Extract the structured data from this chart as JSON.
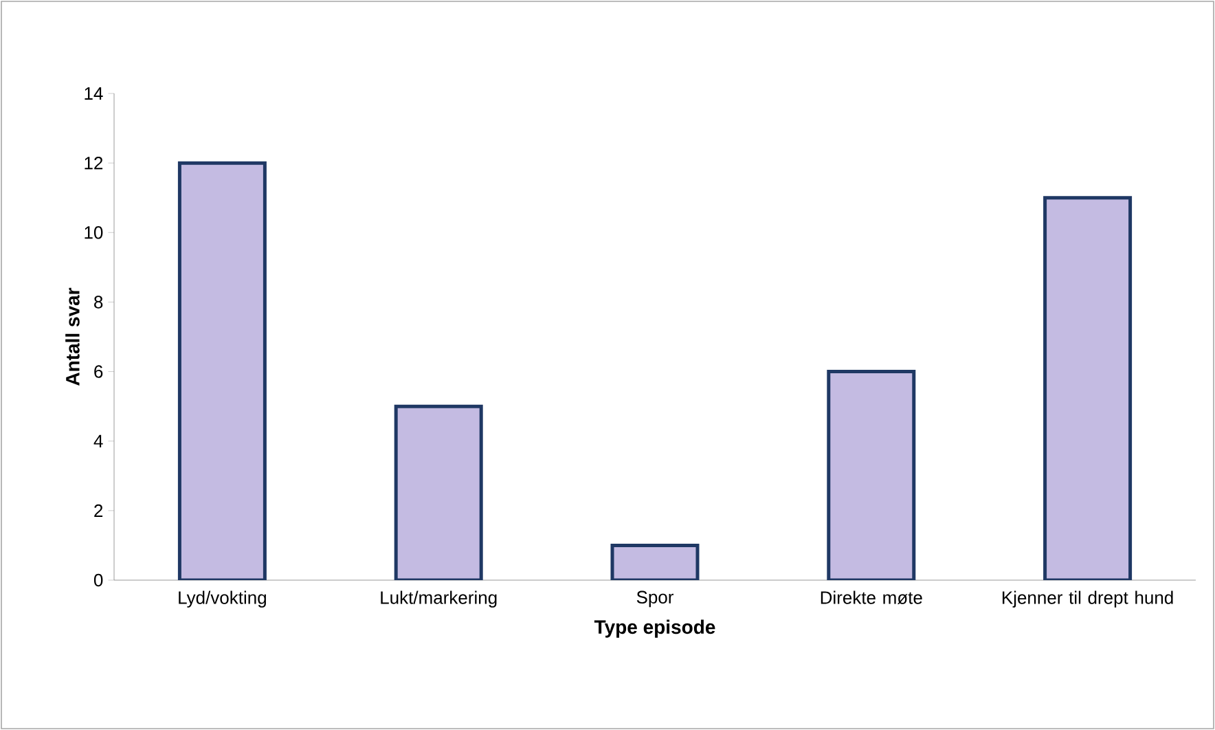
{
  "chart_data": {
    "type": "bar",
    "categories": [
      "Lyd/vokting",
      "Lukt/markering",
      "Spor",
      "Direkte møte",
      "Kjenner til drept hund"
    ],
    "values": [
      12,
      5,
      1,
      6,
      11
    ],
    "color": "#c4bbe2",
    "xlabel": "Type episode",
    "ylabel": "Antall svar",
    "ylim": [
      0,
      14
    ],
    "yticks": [
      0,
      2,
      4,
      6,
      8,
      10,
      12,
      14
    ]
  }
}
